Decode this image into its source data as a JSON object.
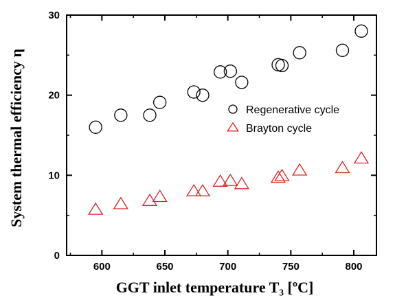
{
  "chart_data": {
    "type": "scatter",
    "xlabel": "GGT inlet temperature T₃ [ºC]",
    "ylabel": "System thermal efficiency  η",
    "xlim": [
      572,
      818
    ],
    "ylim": [
      0,
      30
    ],
    "xticks": [
      "600",
      "650",
      "700",
      "750",
      "800"
    ],
    "xtick_values": [
      600,
      650,
      700,
      750,
      800
    ],
    "yticks": [
      "0",
      "10",
      "20",
      "30"
    ],
    "ytick_values": [
      0,
      10,
      20,
      30
    ],
    "grid": false,
    "legend_position": "center-right",
    "series": [
      {
        "name": "Regenerative cycle",
        "marker": "circle",
        "color": "#000000",
        "x": [
          595,
          615,
          638,
          646,
          673,
          680,
          694,
          702,
          711,
          740,
          743,
          757,
          791,
          806
        ],
        "y": [
          16.0,
          17.5,
          17.5,
          19.1,
          20.4,
          20.0,
          22.9,
          23.0,
          21.6,
          23.8,
          23.7,
          25.3,
          25.6,
          28.0
        ]
      },
      {
        "name": "Brayton cycle",
        "marker": "triangle",
        "color": "#e02020",
        "x": [
          595,
          615,
          638,
          646,
          673,
          680,
          694,
          702,
          711,
          740,
          743,
          757,
          791,
          806
        ],
        "y": [
          5.7,
          6.4,
          6.8,
          7.3,
          8.0,
          8.0,
          9.2,
          9.3,
          8.9,
          9.7,
          9.9,
          10.6,
          10.9,
          12.1
        ]
      }
    ]
  }
}
